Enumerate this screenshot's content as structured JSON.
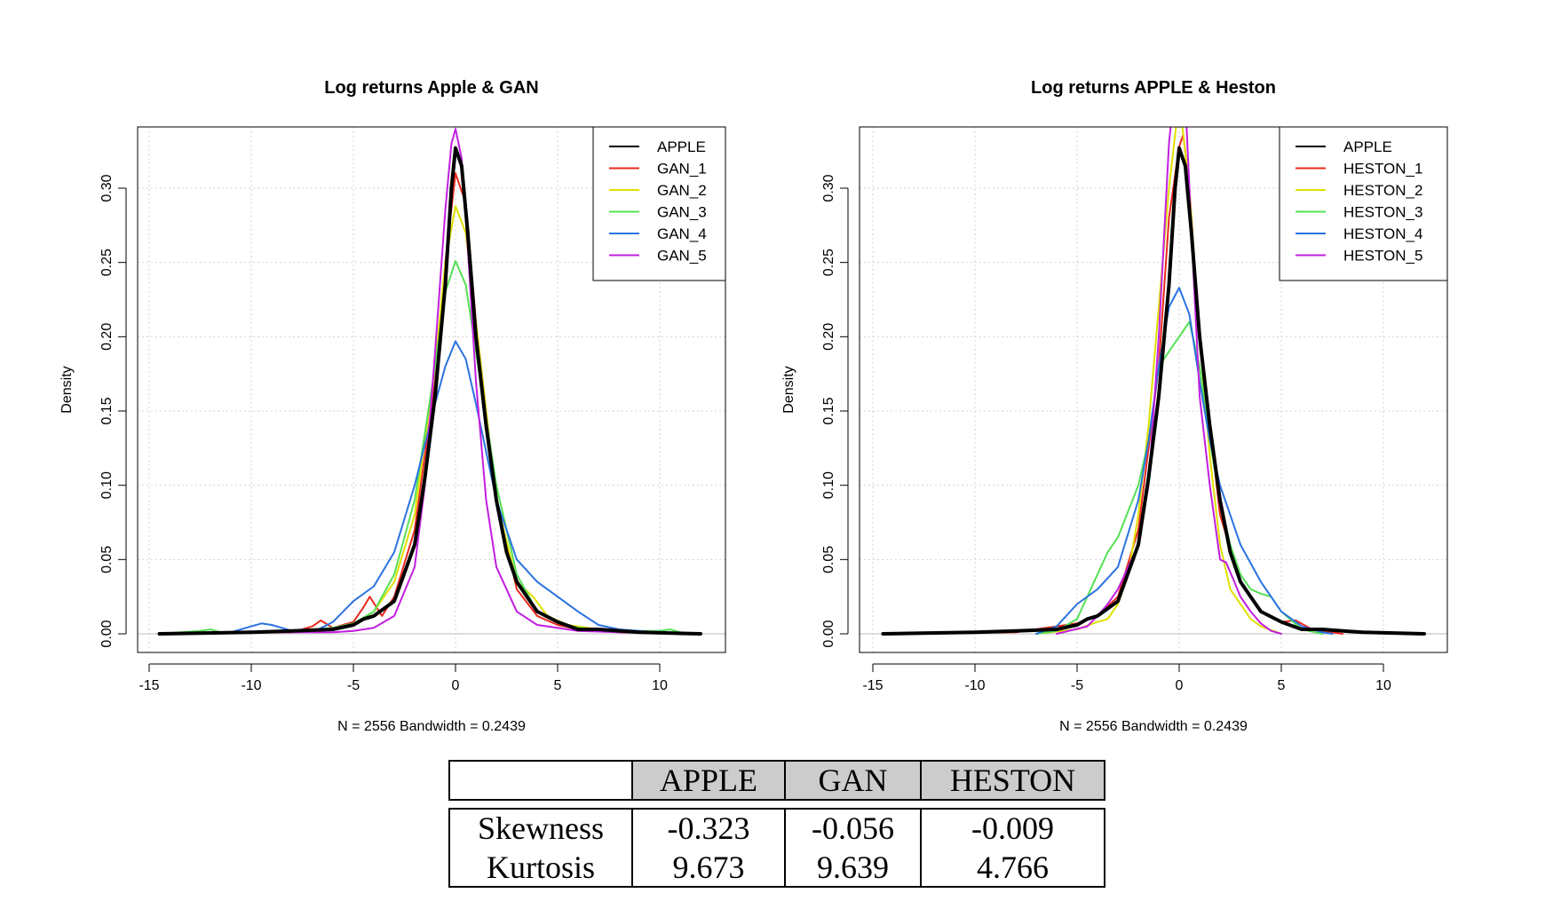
{
  "chart_data": [
    {
      "type": "line",
      "title": "Log returns Apple & GAN",
      "xlabel": "N = 2556   Bandwidth = 0.2439",
      "ylabel": "Density",
      "xlim": [
        -15,
        13
      ],
      "ylim": [
        0,
        0.34
      ],
      "xticks": [
        "-15",
        "-10",
        "-5",
        "0",
        "5",
        "10"
      ],
      "yticks": [
        "0.00",
        "0.05",
        "0.10",
        "0.15",
        "0.20",
        "0.25",
        "0.30"
      ],
      "grid": true,
      "legend_position": "top-right",
      "series": [
        {
          "name": "APPLE",
          "color": "#000000",
          "width": 4,
          "x": [
            -14.5,
            -10,
            -8,
            -6,
            -5,
            -4.5,
            -4,
            -3,
            -2,
            -1.5,
            -1,
            -0.5,
            -0.2,
            0,
            0.3,
            0.6,
            1,
            1.5,
            2,
            2.5,
            3,
            3.5,
            4,
            5,
            6,
            7,
            9,
            12
          ],
          "y": [
            0,
            0.001,
            0.002,
            0.003,
            0.006,
            0.01,
            0.012,
            0.022,
            0.06,
            0.105,
            0.16,
            0.235,
            0.3,
            0.327,
            0.315,
            0.27,
            0.2,
            0.14,
            0.09,
            0.055,
            0.035,
            0.025,
            0.015,
            0.008,
            0.003,
            0.003,
            0.001,
            0
          ]
        },
        {
          "name": "GAN_1",
          "color": "#e8291c",
          "width": 2,
          "x": [
            -14.5,
            -10,
            -8,
            -7,
            -6.6,
            -6,
            -5,
            -4.5,
            -4.2,
            -3.6,
            -3,
            -2,
            -1,
            -0.5,
            0,
            0.5,
            1,
            2,
            3,
            4,
            5,
            6,
            8,
            12
          ],
          "y": [
            0,
            0.001,
            0.001,
            0.005,
            0.009,
            0.004,
            0.008,
            0.018,
            0.025,
            0.012,
            0.025,
            0.07,
            0.17,
            0.25,
            0.31,
            0.29,
            0.21,
            0.09,
            0.03,
            0.012,
            0.006,
            0.003,
            0.001,
            0
          ]
        },
        {
          "name": "GAN_2",
          "color": "#e0e000",
          "width": 2,
          "x": [
            -14.5,
            -10,
            -7,
            -5,
            -4,
            -3,
            -2,
            -1,
            -0.5,
            0,
            0.5,
            1,
            2,
            3,
            3.8,
            4.5,
            5.5,
            7,
            9,
            12
          ],
          "y": [
            0,
            0.001,
            0.002,
            0.006,
            0.015,
            0.035,
            0.08,
            0.18,
            0.25,
            0.288,
            0.27,
            0.21,
            0.09,
            0.035,
            0.025,
            0.012,
            0.006,
            0.003,
            0.001,
            0
          ]
        },
        {
          "name": "GAN_3",
          "color": "#55e055",
          "width": 2,
          "x": [
            -14.5,
            -12.5,
            -12,
            -11.5,
            -10,
            -8,
            -6,
            -5,
            -4,
            -3,
            -2,
            -1,
            -0.5,
            0,
            0.5,
            1,
            2,
            3,
            4,
            5,
            6,
            8,
            10,
            10.5,
            11,
            12
          ],
          "y": [
            0,
            0.002,
            0.003,
            0.001,
            0.001,
            0.002,
            0.004,
            0.007,
            0.015,
            0.04,
            0.09,
            0.18,
            0.23,
            0.251,
            0.235,
            0.19,
            0.1,
            0.04,
            0.015,
            0.008,
            0.004,
            0.002,
            0.002,
            0.003,
            0.001,
            0
          ]
        },
        {
          "name": "GAN_4",
          "color": "#2a72e0",
          "width": 2,
          "x": [
            -14.5,
            -11,
            -10,
            -9.5,
            -9,
            -8,
            -7,
            -6,
            -5,
            -4,
            -3,
            -2,
            -1,
            -0.5,
            0,
            0.5,
            1,
            2,
            3,
            4,
            5,
            6,
            7,
            8,
            9,
            10,
            12
          ],
          "y": [
            0,
            0.001,
            0.005,
            0.007,
            0.006,
            0.002,
            0.001,
            0.008,
            0.022,
            0.032,
            0.055,
            0.1,
            0.155,
            0.18,
            0.197,
            0.185,
            0.155,
            0.09,
            0.05,
            0.035,
            0.025,
            0.015,
            0.006,
            0.003,
            0.002,
            0.001,
            0
          ]
        },
        {
          "name": "GAN_5",
          "color": "#c21ee0",
          "width": 2,
          "x": [
            -14.5,
            -10,
            -6,
            -5,
            -4,
            -3,
            -2,
            -1.5,
            -1,
            -0.5,
            -0.2,
            0,
            0.3,
            0.6,
            1,
            1.5,
            2,
            3,
            4,
            5,
            6,
            8,
            12
          ],
          "y": [
            0,
            0.001,
            0.001,
            0.002,
            0.004,
            0.012,
            0.045,
            0.1,
            0.19,
            0.285,
            0.33,
            0.34,
            0.32,
            0.26,
            0.17,
            0.09,
            0.045,
            0.015,
            0.006,
            0.004,
            0.002,
            0.001,
            0
          ]
        }
      ]
    },
    {
      "type": "line",
      "title": "Log returns APPLE & Heston",
      "xlabel": "N = 2556   Bandwidth = 0.2439",
      "ylabel": "Density",
      "xlim": [
        -15,
        13
      ],
      "ylim": [
        0,
        0.34
      ],
      "xticks": [
        "-15",
        "-10",
        "-5",
        "0",
        "5",
        "10"
      ],
      "yticks": [
        "0.00",
        "0.05",
        "0.10",
        "0.15",
        "0.20",
        "0.25",
        "0.30"
      ],
      "grid": true,
      "legend_position": "top-right",
      "series": [
        {
          "name": "APPLE",
          "color": "#000000",
          "width": 4,
          "x": [
            -14.5,
            -10,
            -8,
            -6,
            -5,
            -4.5,
            -4,
            -3,
            -2,
            -1.5,
            -1,
            -0.5,
            -0.2,
            0,
            0.3,
            0.6,
            1,
            1.5,
            2,
            2.5,
            3,
            3.5,
            4,
            5,
            6,
            7,
            9,
            12
          ],
          "y": [
            0,
            0.001,
            0.002,
            0.003,
            0.006,
            0.01,
            0.012,
            0.022,
            0.06,
            0.105,
            0.16,
            0.235,
            0.3,
            0.327,
            0.315,
            0.27,
            0.2,
            0.14,
            0.09,
            0.055,
            0.035,
            0.025,
            0.015,
            0.008,
            0.003,
            0.003,
            0.001,
            0
          ]
        },
        {
          "name": "HESTON_1",
          "color": "#e8291c",
          "width": 2,
          "x": [
            -14.5,
            -8,
            -6.5,
            -5,
            -4,
            -3,
            -2,
            -1,
            -0.5,
            0,
            0.2,
            0.5,
            1,
            2,
            3,
            4,
            5,
            5.7,
            6.5,
            8
          ],
          "y": [
            0,
            0.001,
            0.004,
            0.007,
            0.012,
            0.025,
            0.07,
            0.18,
            0.28,
            0.328,
            0.336,
            0.3,
            0.2,
            0.08,
            0.035,
            0.015,
            0.008,
            0.009,
            0.003,
            0
          ]
        },
        {
          "name": "HESTON_2",
          "color": "#e0e000",
          "width": 2,
          "x": [
            -7,
            -5,
            -4,
            -3.5,
            -3,
            -2.5,
            -2,
            -1.5,
            -1,
            -0.5,
            0,
            0.5,
            1,
            1.5,
            2,
            2.5,
            3,
            3.5,
            4,
            5
          ],
          "y": [
            0,
            0.003,
            0.008,
            0.01,
            0.02,
            0.04,
            0.08,
            0.14,
            0.22,
            0.3,
            0.36,
            0.3,
            0.2,
            0.12,
            0.06,
            0.03,
            0.02,
            0.01,
            0.005,
            0
          ]
        },
        {
          "name": "HESTON_3",
          "color": "#55e055",
          "width": 2,
          "x": [
            -7,
            -6,
            -5,
            -4,
            -3.5,
            -3,
            -2,
            -1.5,
            -1,
            -0.5,
            0,
            0.5,
            1,
            1.5,
            2,
            2.5,
            3,
            3.5,
            4,
            4.5,
            5,
            6,
            7
          ],
          "y": [
            0,
            0.002,
            0.01,
            0.04,
            0.055,
            0.065,
            0.1,
            0.13,
            0.18,
            0.19,
            0.2,
            0.21,
            0.18,
            0.13,
            0.09,
            0.06,
            0.04,
            0.03,
            0.027,
            0.025,
            0.015,
            0.003,
            0
          ]
        },
        {
          "name": "HESTON_4",
          "color": "#2a72e0",
          "width": 2,
          "x": [
            -7,
            -6,
            -5,
            -4,
            -3,
            -2,
            -1.5,
            -1,
            -0.5,
            0,
            0.5,
            1,
            1.5,
            2,
            3,
            4,
            5,
            6,
            7,
            7.5
          ],
          "y": [
            0,
            0.005,
            0.02,
            0.03,
            0.045,
            0.09,
            0.13,
            0.18,
            0.22,
            0.233,
            0.215,
            0.17,
            0.13,
            0.1,
            0.06,
            0.035,
            0.015,
            0.005,
            0.001,
            0
          ]
        },
        {
          "name": "HESTON_5",
          "color": "#c21ee0",
          "width": 2,
          "x": [
            -6,
            -4.5,
            -4,
            -3.5,
            -3,
            -2,
            -1.5,
            -1,
            -0.5,
            0,
            0.3,
            0.6,
            1,
            1.5,
            2,
            2.3,
            2.7,
            3,
            3.5,
            4,
            4.5,
            5
          ],
          "y": [
            0,
            0.005,
            0.012,
            0.02,
            0.03,
            0.06,
            0.1,
            0.2,
            0.33,
            0.4,
            0.36,
            0.27,
            0.16,
            0.1,
            0.05,
            0.048,
            0.035,
            0.025,
            0.015,
            0.007,
            0.002,
            0
          ]
        }
      ]
    },
    {
      "type": "table",
      "columns": [
        "",
        "APPLE",
        "GAN",
        "HESTON"
      ],
      "rows": [
        {
          "label": "Skewness",
          "values": [
            "-0.323",
            "-0.056",
            "-0.009"
          ]
        },
        {
          "label": "Kurtosis",
          "values": [
            "9.673",
            "9.639",
            "4.766"
          ]
        }
      ]
    }
  ]
}
